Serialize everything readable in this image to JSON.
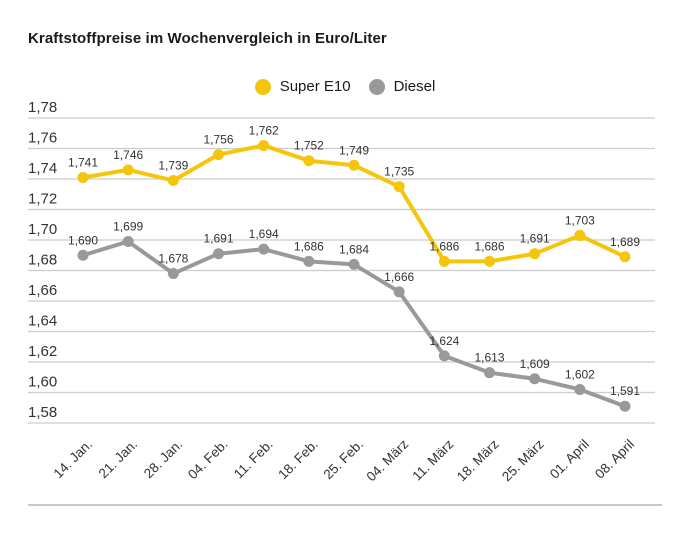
{
  "title": "Kraftstoffpreise im Wochenvergleich in Euro/Liter",
  "legend": [
    {
      "label": "Super E10",
      "color": "#F5C50C"
    },
    {
      "label": "Diesel",
      "color": "#999999"
    }
  ],
  "chart_data": {
    "type": "line",
    "title": "Kraftstoffpreise im Wochenvergleich in Euro/Liter",
    "categories": [
      "14. Jan.",
      "21. Jan.",
      "28. Jan.",
      "04. Feb.",
      "11. Feb.",
      "18. Feb.",
      "25. Feb.",
      "04. März",
      "11. März",
      "18. März",
      "25. März",
      "01. April",
      "08. April"
    ],
    "series": [
      {
        "name": "Super E10",
        "color": "#F5C50C",
        "values": [
          1.741,
          1.746,
          1.739,
          1.756,
          1.762,
          1.752,
          1.749,
          1.735,
          1.686,
          1.686,
          1.691,
          1.703,
          1.689
        ]
      },
      {
        "name": "Diesel",
        "color": "#999999",
        "values": [
          1.69,
          1.699,
          1.678,
          1.691,
          1.694,
          1.686,
          1.684,
          1.666,
          1.624,
          1.613,
          1.609,
          1.602,
          1.591
        ]
      }
    ],
    "ylim": [
      1.58,
      1.78
    ],
    "yticks": [
      1.78,
      1.76,
      1.74,
      1.72,
      1.7,
      1.68,
      1.66,
      1.64,
      1.62,
      1.6,
      1.58
    ],
    "ytick_labels": [
      "1,78",
      "1,76",
      "1,74",
      "1,72",
      "1,70",
      "1,68",
      "1,66",
      "1,64",
      "1,62",
      "1,60",
      "1,58"
    ],
    "decimal_separator": ",",
    "grid": true,
    "legend_position": "top-center",
    "colors": {
      "grid": "#cccccc",
      "axis_label": "#333333",
      "value_label": "#333333"
    }
  }
}
